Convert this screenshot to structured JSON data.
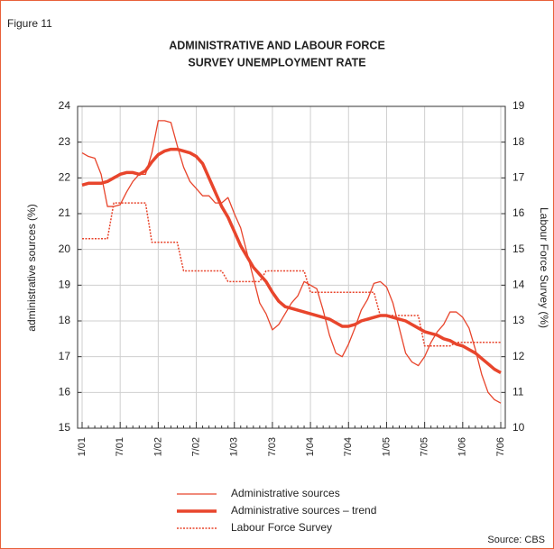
{
  "chart_data": {
    "type": "line",
    "figure_label": "Figure 11",
    "title": [
      "ADMINISTRATIVE AND LABOUR FORCE",
      "SURVEY UNEMPLOYMENT RATE"
    ],
    "ylabel": "administrative sources (%)",
    "y2label": "Labour Force Survey (%)",
    "source": "Source: CBS",
    "categories": [
      "1/01",
      null,
      null,
      null,
      null,
      null,
      "7/01",
      null,
      null,
      null,
      null,
      null,
      "1/02",
      null,
      null,
      null,
      null,
      null,
      "7/02",
      null,
      null,
      null,
      null,
      null,
      "1/03",
      null,
      null,
      null,
      null,
      null,
      "7/03",
      null,
      null,
      null,
      null,
      null,
      "1/04",
      null,
      null,
      null,
      null,
      null,
      "7/04",
      null,
      null,
      null,
      null,
      null,
      "1/05",
      null,
      null,
      null,
      null,
      null,
      "7/05",
      null,
      null,
      null,
      null,
      null,
      "1/06",
      null,
      null,
      null,
      null,
      null,
      "7/06"
    ],
    "ylim": [
      15,
      24
    ],
    "yticks": [
      15,
      16,
      17,
      18,
      19,
      20,
      21,
      22,
      23,
      24
    ],
    "y2lim": [
      10,
      19
    ],
    "y2ticks": [
      10,
      11,
      12,
      13,
      14,
      15,
      16,
      17,
      18,
      19
    ],
    "grid": true,
    "legend": "bottom",
    "series": [
      {
        "name": "Administrative sources",
        "color": "#e8452c",
        "line_width": 1.3,
        "dash": "solid",
        "values": [
          22.7,
          22.6,
          22.55,
          22.1,
          21.2,
          21.2,
          21.25,
          21.6,
          21.9,
          22.1,
          22.1,
          22.7,
          23.6,
          23.6,
          23.55,
          22.9,
          22.3,
          21.9,
          21.7,
          21.5,
          21.5,
          21.3,
          21.3,
          21.45,
          21.0,
          20.6,
          19.9,
          19.2,
          18.5,
          18.2,
          17.75,
          17.9,
          18.2,
          18.5,
          18.7,
          19.1,
          19.0,
          18.9,
          18.3,
          17.6,
          17.1,
          17.0,
          17.35,
          17.8,
          18.3,
          18.6,
          19.05,
          19.1,
          18.95,
          18.5,
          17.8,
          17.1,
          16.85,
          16.75,
          17.0,
          17.4,
          17.7,
          17.9,
          18.25,
          18.25,
          18.1,
          17.8,
          17.2,
          16.5,
          16.0,
          15.8,
          15.7
        ]
      },
      {
        "name": "Administrative sources – trend",
        "color": "#e8452c",
        "line_width": 3.5,
        "dash": "solid",
        "values": [
          21.8,
          21.85,
          21.85,
          21.85,
          21.9,
          22.0,
          22.1,
          22.15,
          22.15,
          22.1,
          22.2,
          22.45,
          22.65,
          22.75,
          22.8,
          22.8,
          22.75,
          22.7,
          22.6,
          22.4,
          22.0,
          21.6,
          21.2,
          20.9,
          20.5,
          20.1,
          19.8,
          19.5,
          19.3,
          19.1,
          18.8,
          18.55,
          18.4,
          18.35,
          18.3,
          18.25,
          18.2,
          18.15,
          18.1,
          18.05,
          17.95,
          17.85,
          17.85,
          17.9,
          18.0,
          18.05,
          18.1,
          18.15,
          18.15,
          18.1,
          18.05,
          18.0,
          17.9,
          17.8,
          17.7,
          17.65,
          17.6,
          17.5,
          17.45,
          17.35,
          17.3,
          17.2,
          17.1,
          16.95,
          16.8,
          16.65,
          16.55
        ]
      },
      {
        "name": "Labour Force Survey",
        "color": "#e8452c",
        "line_width": 1.5,
        "dash": "dotted",
        "axis": "y2",
        "values": [
          15.3,
          15.3,
          15.3,
          15.3,
          15.3,
          16.3,
          16.3,
          16.3,
          16.3,
          16.3,
          16.3,
          15.2,
          15.2,
          15.2,
          15.2,
          15.2,
          14.4,
          14.4,
          14.4,
          14.4,
          14.4,
          14.4,
          14.4,
          14.1,
          14.1,
          14.1,
          14.1,
          14.1,
          14.1,
          14.4,
          14.4,
          14.4,
          14.4,
          14.4,
          14.4,
          14.4,
          13.8,
          13.8,
          13.8,
          13.8,
          13.8,
          13.8,
          13.8,
          13.8,
          13.8,
          13.8,
          13.8,
          13.15,
          13.15,
          13.15,
          13.15,
          13.15,
          13.15,
          13.15,
          12.3,
          12.3,
          12.3,
          12.3,
          12.3,
          12.4,
          12.4,
          12.4,
          12.4,
          12.4,
          12.4,
          12.4,
          12.4
        ]
      }
    ]
  }
}
